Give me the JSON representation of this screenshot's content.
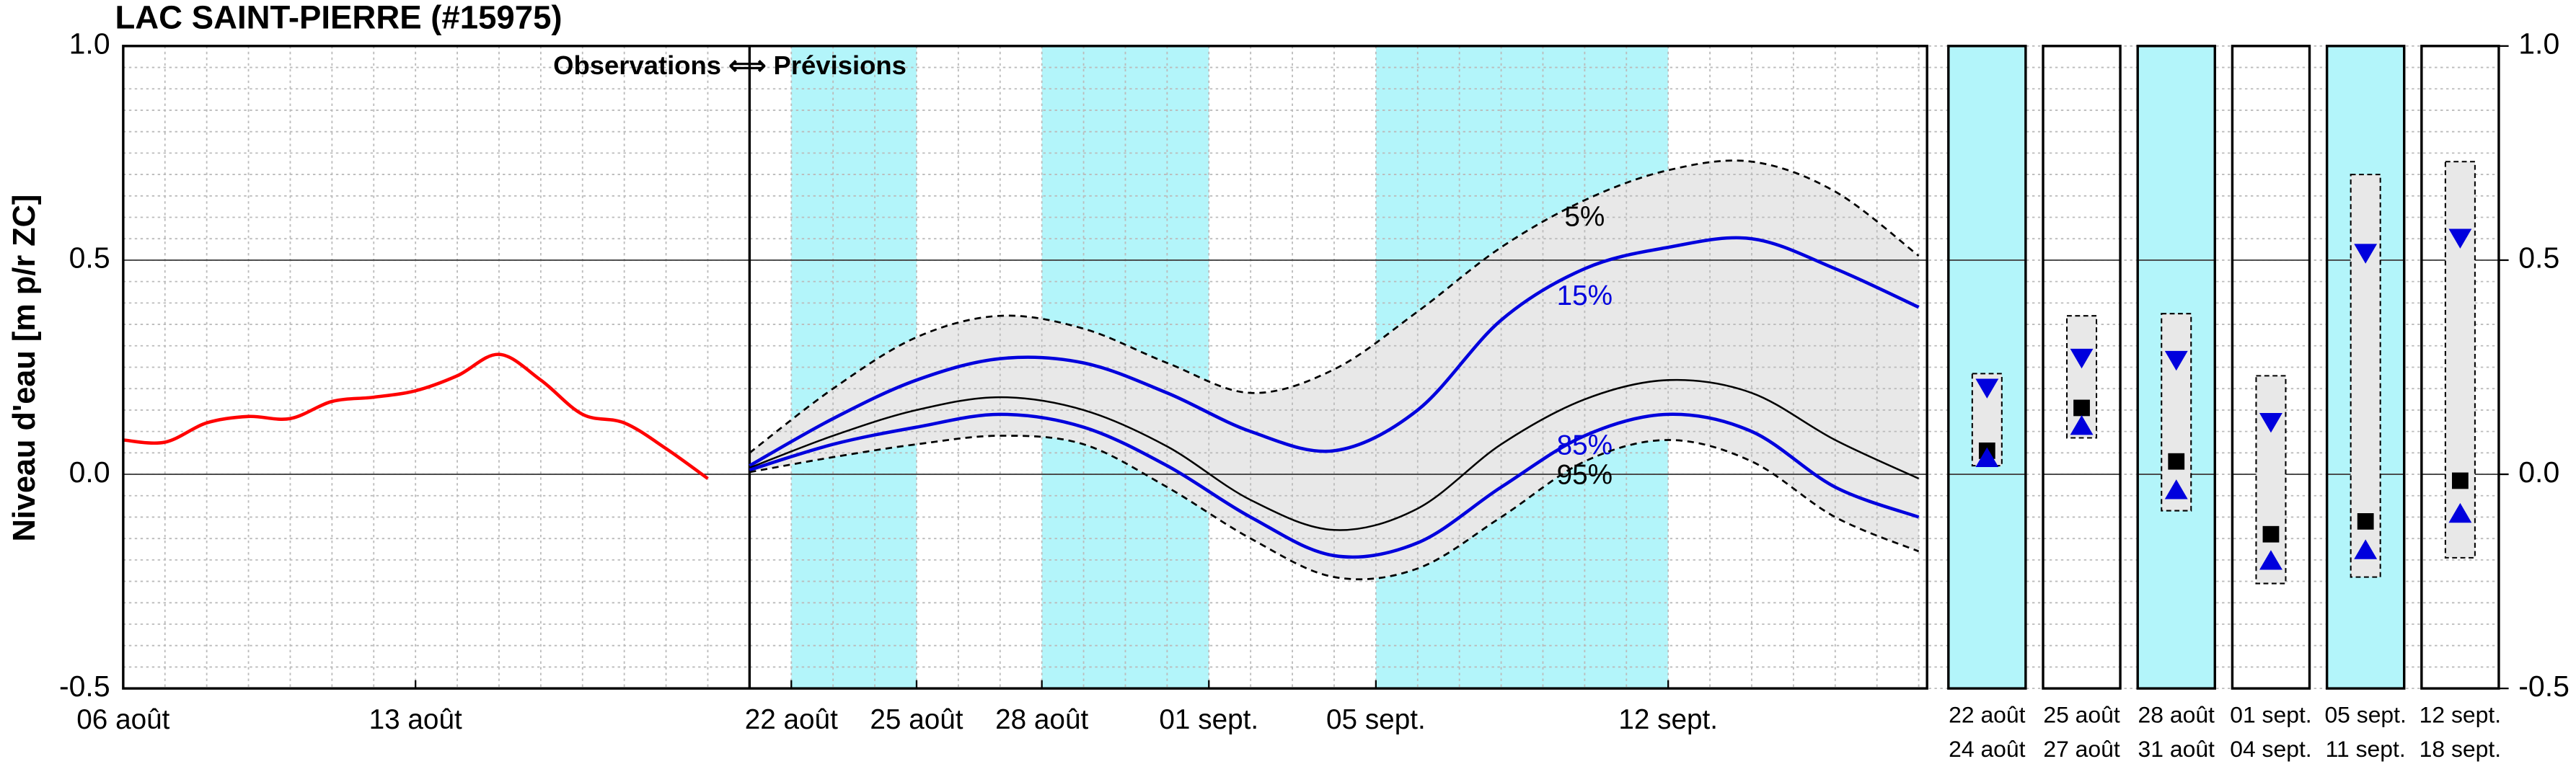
{
  "chart_data": [
    {
      "type": "line",
      "title": "LAC SAINT-PIERRE (#15975)",
      "ylabel": "Niveau d'eau [m p/r ZC]",
      "annotation": "Observations ⟺ Prévisions",
      "xlim": [
        6,
        49.2
      ],
      "xticks": [
        {
          "value": 6,
          "label": "06 août"
        },
        {
          "value": 13,
          "label": "13 août"
        },
        {
          "value": 22,
          "label": "22 août"
        },
        {
          "value": 25,
          "label": "25 août"
        },
        {
          "value": 28,
          "label": "28 août"
        },
        {
          "value": 32,
          "label": "01 sept."
        },
        {
          "value": 36,
          "label": "05 sept."
        },
        {
          "value": 43,
          "label": "12 sept."
        }
      ],
      "ylim": [
        -0.5,
        1
      ],
      "yticks": [
        {
          "value": 1,
          "label": "1.0"
        },
        0.5,
        {
          "value": 0,
          "label": "0.0"
        },
        -0.5
      ],
      "grid": true,
      "forecast_start": 21,
      "shaded_periods": [
        [
          22,
          25
        ],
        [
          28,
          32
        ],
        [
          36,
          43
        ]
      ],
      "shade_color": "#b3f5fa",
      "band_color": "#e8e8e8",
      "series": [
        {
          "color": "#ff0000",
          "x": [
            6,
            7,
            8,
            9,
            10,
            11,
            12,
            13,
            14,
            15,
            16,
            17,
            18,
            19,
            20
          ],
          "values": [
            0.08,
            0.075,
            0.12,
            0.135,
            0.13,
            0.17,
            0.18,
            0.195,
            0.23,
            0.28,
            0.22,
            0.14,
            0.12,
            0.06,
            -0.01
          ]
        },
        {
          "label": "5%",
          "color": "#000000",
          "dashed": true,
          "x": [
            21,
            23,
            25,
            27,
            29,
            31,
            33,
            35,
            37,
            39,
            41,
            43,
            45,
            47,
            49
          ],
          "values": [
            0.05,
            0.2,
            0.32,
            0.37,
            0.34,
            0.26,
            0.19,
            0.245,
            0.38,
            0.53,
            0.64,
            0.71,
            0.73,
            0.66,
            0.51
          ]
        },
        {
          "label": "15%",
          "color": "#0000dd",
          "x": [
            21,
            23,
            25,
            27,
            29,
            31,
            33,
            35,
            37,
            39,
            41,
            43,
            45,
            47,
            49
          ],
          "values": [
            0.02,
            0.13,
            0.22,
            0.27,
            0.26,
            0.19,
            0.1,
            0.055,
            0.15,
            0.36,
            0.48,
            0.53,
            0.55,
            0.48,
            0.39
          ]
        },
        {
          "color": "#000000",
          "thin": true,
          "x": [
            21,
            23,
            25,
            27,
            29,
            31,
            33,
            35,
            37,
            39,
            41,
            43,
            45,
            47,
            49
          ],
          "values": [
            0.015,
            0.09,
            0.15,
            0.18,
            0.15,
            0.065,
            -0.06,
            -0.13,
            -0.08,
            0.07,
            0.175,
            0.22,
            0.19,
            0.08,
            -0.01
          ]
        },
        {
          "label": "85%",
          "color": "#0000dd",
          "x": [
            21,
            23,
            25,
            27,
            29,
            31,
            33,
            35,
            37,
            39,
            41,
            43,
            45,
            47,
            49
          ],
          "values": [
            0.01,
            0.07,
            0.11,
            0.14,
            0.11,
            0.02,
            -0.1,
            -0.19,
            -0.16,
            -0.03,
            0.09,
            0.14,
            0.1,
            -0.03,
            -0.1
          ]
        },
        {
          "label": "95%",
          "color": "#000000",
          "dashed": true,
          "x": [
            21,
            23,
            25,
            27,
            29,
            31,
            33,
            35,
            37,
            39,
            41,
            43,
            45,
            47,
            49
          ],
          "values": [
            0.005,
            0.04,
            0.07,
            0.09,
            0.07,
            -0.03,
            -0.15,
            -0.24,
            -0.22,
            -0.1,
            0.03,
            0.08,
            0.03,
            -0.1,
            -0.18
          ]
        }
      ]
    },
    {
      "type": "box",
      "categories": [
        [
          "22 août",
          "24 août"
        ],
        [
          "25 août",
          "27 août"
        ],
        [
          "28 août",
          "31 août"
        ],
        [
          "01 sept.",
          "04 sept."
        ],
        [
          "05 sept.",
          "11 sept."
        ],
        [
          "12 sept.",
          "18 sept."
        ]
      ],
      "shaded": [
        true,
        false,
        true,
        false,
        true,
        false
      ],
      "shade_color": "#b3f5fa",
      "box_color": "#e8e8e8",
      "marker_color": "#0000dd",
      "median_color": "#000000",
      "ylim": [
        -0.5,
        1
      ],
      "yticks": [
        {
          "value": 1,
          "label": "1.0"
        },
        0.5,
        {
          "value": 0,
          "label": "0.0"
        },
        -0.5
      ],
      "box_high": [
        0.235,
        0.37,
        0.375,
        0.23,
        0.7,
        0.73
      ],
      "box_low": [
        0.02,
        0.085,
        -0.085,
        -0.255,
        -0.24,
        -0.195
      ],
      "upper_marker": [
        0.2,
        0.27,
        0.265,
        0.12,
        0.515,
        0.55
      ],
      "median": [
        0.055,
        0.155,
        0.03,
        -0.14,
        -0.11,
        -0.015
      ],
      "lower_marker": [
        0.04,
        0.115,
        -0.035,
        -0.2,
        -0.175,
        -0.09
      ]
    }
  ]
}
